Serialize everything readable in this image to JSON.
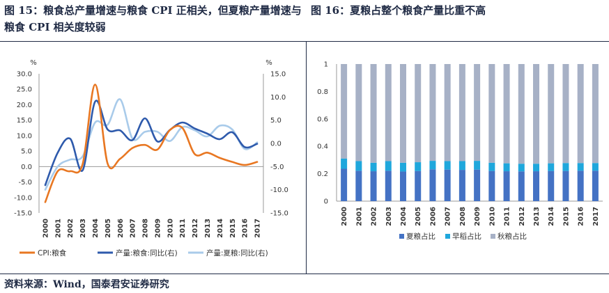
{
  "left": {
    "title": "图 15：粮食总产量增速与粮食 CPI 正相关，但夏粮产量增速与粮食 CPI 相关度较弱"
  },
  "right": {
    "title": "图 16：夏粮占整个粮食产量比重不高"
  },
  "source": "资料来源：Wind，国泰君安证券研究",
  "chart_data": [
    {
      "type": "line",
      "title": "",
      "x": [
        "2000",
        "2001",
        "2002",
        "2003",
        "2004",
        "2005",
        "2006",
        "2007",
        "2008",
        "2009",
        "2010",
        "2011",
        "2012",
        "2013",
        "2014",
        "2015",
        "2016",
        "2017"
      ],
      "left_axis": {
        "unit": "%",
        "ylim": [
          -15,
          30
        ],
        "ticks": [
          "30.0",
          "25.0",
          "20.0",
          "15.0",
          "10.0",
          "5.0",
          "0.0",
          "-5.0",
          "-10.0",
          "-15.0"
        ]
      },
      "right_axis": {
        "unit": "%",
        "ylim": [
          -15,
          15
        ],
        "ticks": [
          "15.0",
          "10.0",
          "5.0",
          "0.0",
          "-5.0",
          "-10.0",
          "-15.0"
        ]
      },
      "series": [
        {
          "name": "CPI:粮食",
          "axis": "left",
          "color": "#E87722",
          "values": [
            -11.5,
            -1.5,
            -1.5,
            0.8,
            26.5,
            1.0,
            2.5,
            6.0,
            7.0,
            5.5,
            11.8,
            12.5,
            4.0,
            4.5,
            2.8,
            1.5,
            0.5,
            1.5
          ]
        },
        {
          "name": "产量:粮食:同比(右)",
          "axis": "right",
          "color": "#2E5AAC",
          "values": [
            -9.0,
            -2.0,
            1.0,
            -5.8,
            9.0,
            3.0,
            2.8,
            0.7,
            5.4,
            0.4,
            2.9,
            4.5,
            3.2,
            2.1,
            0.9,
            2.4,
            -0.8,
            -0.1
          ]
        },
        {
          "name": "产量:夏粮:同比(右)",
          "axis": "right",
          "color": "#A9CBEA",
          "values": [
            -10.0,
            -5.0,
            -3.5,
            -2.8,
            4.5,
            4.0,
            9.5,
            1.0,
            2.5,
            2.5,
            0.5,
            3.5,
            2.8,
            1.5,
            3.8,
            3.0,
            -1.2,
            0.2
          ]
        }
      ],
      "legend": "bottom"
    },
    {
      "type": "bar",
      "stacked": true,
      "title": "",
      "categories": [
        "2000",
        "2001",
        "2002",
        "2003",
        "2004",
        "2005",
        "2006",
        "2007",
        "2008",
        "2009",
        "2010",
        "2011",
        "2012",
        "2013",
        "2014",
        "2015",
        "2016",
        "2017"
      ],
      "ylim": [
        0,
        1
      ],
      "y_ticks": [
        "0",
        "0.2",
        "0.4",
        "0.6",
        "0.8",
        "1"
      ],
      "series": [
        {
          "name": "夏粮占比",
          "color": "#4472C4",
          "values": [
            0.236,
            0.222,
            0.218,
            0.222,
            0.216,
            0.22,
            0.232,
            0.23,
            0.228,
            0.23,
            0.22,
            0.218,
            0.217,
            0.218,
            0.22,
            0.22,
            0.222,
            0.222
          ]
        },
        {
          "name": "早稻占比",
          "color": "#1FA7DC",
          "values": [
            0.075,
            0.07,
            0.062,
            0.07,
            0.064,
            0.064,
            0.062,
            0.062,
            0.064,
            0.064,
            0.06,
            0.058,
            0.056,
            0.055,
            0.056,
            0.058,
            0.056,
            0.056
          ]
        },
        {
          "name": "秋粮占比",
          "color": "#A7B1C6",
          "values": [
            0.689,
            0.708,
            0.72,
            0.708,
            0.72,
            0.716,
            0.706,
            0.708,
            0.708,
            0.706,
            0.72,
            0.724,
            0.727,
            0.727,
            0.724,
            0.722,
            0.722,
            0.722
          ]
        }
      ],
      "legend": "bottom"
    }
  ]
}
